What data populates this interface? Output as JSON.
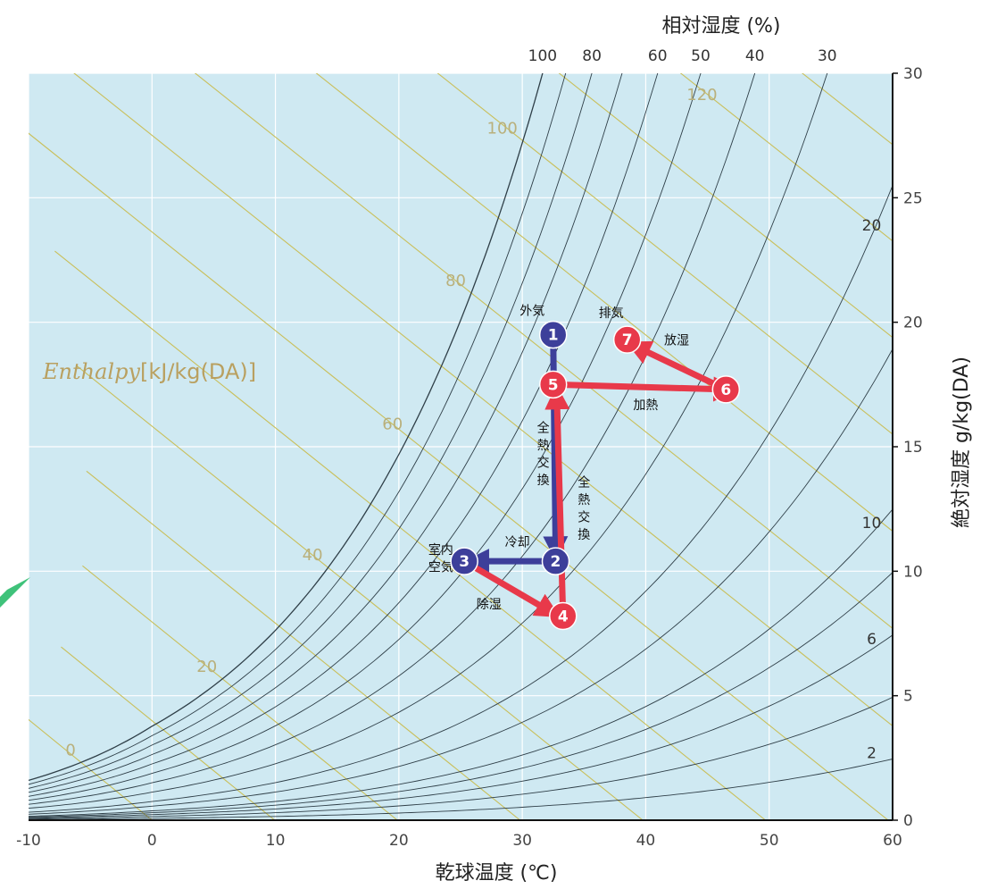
{
  "chart_data": {
    "type": "psychrometric",
    "xlabel": "乾球温度 (℃)",
    "ylabel": "絶対湿度 g/kg(DA)",
    "rh_title": "相対湿度 (%)",
    "enthalpy_title_italic": "Enthalpy",
    "enthalpy_title_unit": "[kJ/kg(DA)]",
    "xlim": [
      -10,
      60
    ],
    "ylim": [
      0,
      30
    ],
    "x_ticks": [
      -10,
      0,
      10,
      20,
      30,
      40,
      50,
      60
    ],
    "y_ticks": [
      0,
      5,
      10,
      15,
      20,
      25,
      30
    ],
    "rh_curves": [
      2,
      4,
      6,
      8,
      10,
      15,
      20,
      30,
      40,
      50,
      60,
      70,
      80,
      90,
      100
    ],
    "rh_labels": [
      {
        "text": "100",
        "value": 100
      },
      {
        "text": "80",
        "value": 80
      },
      {
        "text": "60",
        "value": 60
      },
      {
        "text": "50",
        "value": 50
      },
      {
        "text": "40",
        "value": 40
      },
      {
        "text": "30",
        "value": 30
      },
      {
        "text": "20",
        "value": 20
      },
      {
        "text": "10",
        "value": 10
      },
      {
        "text": "6",
        "value": 6
      },
      {
        "text": "2",
        "value": 2
      }
    ],
    "enthalpy_lines": [
      0,
      10,
      20,
      30,
      40,
      50,
      60,
      70,
      80,
      90,
      100,
      110,
      120,
      130,
      140
    ],
    "enthalpy_labels": [
      {
        "text": "0",
        "value": 0
      },
      {
        "text": "20",
        "value": 20
      },
      {
        "text": "40",
        "value": 40
      },
      {
        "text": "60",
        "value": 60
      },
      {
        "text": "80",
        "value": 80
      },
      {
        "text": "100",
        "value": 100
      },
      {
        "text": "120",
        "value": 120
      }
    ],
    "points": [
      {
        "id": "1",
        "label": "1",
        "x": 32.5,
        "y": 19.5,
        "color": "#3d3f9a"
      },
      {
        "id": "2",
        "label": "2",
        "x": 32.7,
        "y": 10.4,
        "color": "#3d3f9a"
      },
      {
        "id": "3",
        "label": "3",
        "x": 25.3,
        "y": 10.4,
        "color": "#3d3f9a"
      },
      {
        "id": "4",
        "label": "4",
        "x": 33.3,
        "y": 8.2,
        "color": "#e8394a"
      },
      {
        "id": "5",
        "label": "5",
        "x": 32.5,
        "y": 17.5,
        "color": "#e8394a"
      },
      {
        "id": "6",
        "label": "6",
        "x": 46.5,
        "y": 17.3,
        "color": "#e8394a"
      },
      {
        "id": "7",
        "label": "7",
        "x": 38.5,
        "y": 19.3,
        "color": "#e8394a"
      }
    ],
    "processes": [
      {
        "from": [
          32.5,
          19.5
        ],
        "to": [
          32.7,
          10.9
        ],
        "color": "#3d3f9a"
      },
      {
        "from": [
          32.7,
          10.4
        ],
        "to": [
          26.3,
          10.4
        ],
        "color": "#3d3f9a"
      },
      {
        "from": [
          25.3,
          10.4
        ],
        "to": [
          32.2,
          8.4
        ],
        "color": "#e8394a"
      },
      {
        "from": [
          33.3,
          8.2
        ],
        "to": [
          32.8,
          17.0
        ],
        "color": "#e8394a"
      },
      {
        "from": [
          32.5,
          17.5
        ],
        "to": [
          46.5,
          17.3
        ],
        "color": "#e8394a"
      },
      {
        "from": [
          46.5,
          17.3
        ],
        "to": [
          39.3,
          19.0
        ],
        "color": "#e8394a"
      }
    ],
    "annotations": [
      {
        "text": "外気",
        "x": 30.8,
        "y": 20.3
      },
      {
        "text": "排気",
        "x": 37.2,
        "y": 20.2
      },
      {
        "text": "放湿",
        "x": 42.5,
        "y": 19.1
      },
      {
        "text": "加熱",
        "x": 40.0,
        "y": 16.5
      },
      {
        "text": "全",
        "x": 31.7,
        "y": 15.6
      },
      {
        "text": "熱",
        "x": 31.7,
        "y": 14.9
      },
      {
        "text": "交",
        "x": 31.7,
        "y": 14.2
      },
      {
        "text": "換",
        "x": 31.7,
        "y": 13.5
      },
      {
        "text": "全",
        "x": 35.0,
        "y": 13.4
      },
      {
        "text": "熱",
        "x": 35.0,
        "y": 12.7
      },
      {
        "text": "交",
        "x": 35.0,
        "y": 12.0
      },
      {
        "text": "換",
        "x": 35.0,
        "y": 11.3
      },
      {
        "text": "冷却",
        "x": 29.6,
        "y": 11.0
      },
      {
        "text": "室内",
        "x": 23.4,
        "y": 10.7
      },
      {
        "text": "空気",
        "x": 23.4,
        "y": 10.0
      },
      {
        "text": "除湿",
        "x": 27.3,
        "y": 8.5
      }
    ],
    "grid": true
  },
  "colors": {
    "plot_bg": "#cfe9f2",
    "grid": "#ffffff",
    "rh_curve": "#2f3f48",
    "enthalpy_line": "#c9bf5a",
    "blue": "#3d3f9a",
    "red": "#e8394a"
  }
}
